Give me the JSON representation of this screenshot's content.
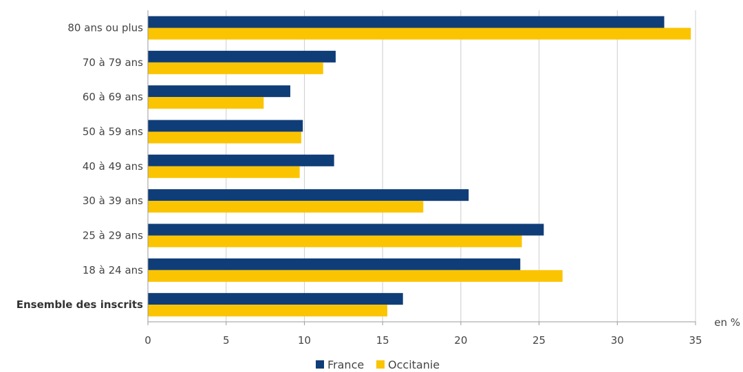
{
  "chart_data": {
    "type": "bar",
    "orientation": "horizontal",
    "categories": [
      "80 ans ou plus",
      "70 à 79 ans",
      "60 à 69 ans",
      "50 à 59 ans",
      "40 à 49 ans",
      "30 à 39 ans",
      "25 à 29 ans",
      "18 à 24 ans",
      "Ensemble des inscrits"
    ],
    "bold_categories": [
      "Ensemble des inscrits"
    ],
    "series": [
      {
        "name": "France",
        "color": "#0f3d78",
        "values": [
          33.0,
          12.0,
          9.1,
          9.9,
          11.9,
          20.5,
          25.3,
          23.8,
          16.3
        ]
      },
      {
        "name": "Occitanie",
        "color": "#fbc400",
        "values": [
          34.7,
          11.2,
          7.4,
          9.8,
          9.7,
          17.6,
          23.9,
          26.5,
          15.3
        ]
      }
    ],
    "xlim": [
      0,
      35
    ],
    "xticks": [
      "0",
      "5",
      "10",
      "15",
      "20",
      "25",
      "30",
      "35"
    ],
    "xunit": "en %",
    "grid": "vertical",
    "legend": "bottom-center"
  }
}
